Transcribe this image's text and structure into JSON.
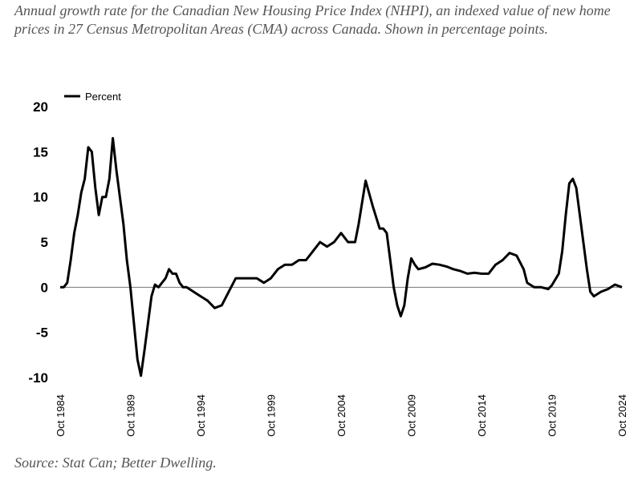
{
  "chart_data": {
    "type": "line",
    "title": "Annual growth rate for the Canadian New Housing Price Index (NHPI), an indexed value of new home prices in 27 Census Metropolitan Areas (CMA) across Canada. Shown in percentage points.",
    "source": "Source: Stat Can; Better Dwelling.",
    "x": [
      "1984-10",
      "1985-01",
      "1985-04",
      "1985-07",
      "1985-10",
      "1986-01",
      "1986-04",
      "1986-07",
      "1986-10",
      "1987-01",
      "1987-04",
      "1987-07",
      "1987-10",
      "1988-01",
      "1988-04",
      "1988-07",
      "1988-10",
      "1989-01",
      "1989-04",
      "1989-07",
      "1989-10",
      "1990-01",
      "1990-04",
      "1990-07",
      "1990-10",
      "1991-01",
      "1991-04",
      "1991-07",
      "1991-10",
      "1992-01",
      "1992-04",
      "1992-07",
      "1992-10",
      "1993-01",
      "1993-04",
      "1993-07",
      "1993-10",
      "1994-04",
      "1994-10",
      "1995-04",
      "1995-10",
      "1996-04",
      "1996-10",
      "1997-04",
      "1997-10",
      "1998-04",
      "1998-10",
      "1999-04",
      "1999-10",
      "2000-04",
      "2000-10",
      "2001-04",
      "2001-10",
      "2002-04",
      "2002-10",
      "2003-04",
      "2003-10",
      "2004-04",
      "2004-10",
      "2005-04",
      "2005-10",
      "2006-01",
      "2006-07",
      "2007-01",
      "2007-07",
      "2007-10",
      "2008-01",
      "2008-04",
      "2008-07",
      "2008-10",
      "2009-01",
      "2009-04",
      "2009-07",
      "2009-10",
      "2010-01",
      "2010-04",
      "2010-10",
      "2011-04",
      "2011-10",
      "2012-04",
      "2012-10",
      "2013-04",
      "2013-10",
      "2014-04",
      "2014-10",
      "2015-04",
      "2015-10",
      "2016-04",
      "2016-10",
      "2017-04",
      "2017-10",
      "2018-01",
      "2018-07",
      "2019-01",
      "2019-07",
      "2019-10",
      "2020-04",
      "2020-07",
      "2020-10",
      "2021-01",
      "2021-04",
      "2021-07",
      "2021-10",
      "2022-01",
      "2022-04",
      "2022-07",
      "2022-10",
      "2023-04",
      "2023-10",
      "2024-04",
      "2024-10"
    ],
    "series": [
      {
        "name": "Percent",
        "color": "#000000",
        "values": [
          0,
          0,
          0.5,
          3,
          6,
          8,
          10.5,
          12,
          15.5,
          15,
          11,
          8,
          10,
          10,
          12,
          16.5,
          13,
          10,
          7,
          3,
          0,
          -4,
          -8,
          -9.8,
          -7,
          -4,
          -1,
          0.3,
          0,
          0.5,
          1,
          2,
          1.5,
          1.5,
          0.5,
          0,
          0,
          -0.5,
          -1,
          -1.5,
          -2.3,
          -2,
          -0.5,
          1,
          1,
          1,
          1,
          0.5,
          1,
          2,
          2.5,
          2.5,
          3,
          3,
          4,
          5,
          4.5,
          5,
          6,
          5,
          5,
          7,
          11.8,
          9,
          6.5,
          6.5,
          6,
          3,
          0,
          -2,
          -3.2,
          -2,
          1,
          3.2,
          2.5,
          2,
          2.2,
          2.6,
          2.5,
          2.3,
          2,
          1.8,
          1.5,
          1.6,
          1.5,
          1.5,
          2.5,
          3,
          3.8,
          3.5,
          2,
          0.5,
          0,
          0,
          -0.2,
          0.2,
          1.5,
          4,
          8,
          11.5,
          12,
          11,
          8,
          5,
          2,
          -0.5,
          -1,
          -0.5,
          -0.2,
          0.3,
          0
        ]
      }
    ],
    "xlim": [
      "1984-10",
      "2024-10"
    ],
    "xticks": [
      {
        "value": "1984-10",
        "label": "Oct 1984"
      },
      {
        "value": "1989-10",
        "label": "Oct 1989"
      },
      {
        "value": "1994-10",
        "label": "Oct 1994"
      },
      {
        "value": "1999-10",
        "label": "Oct 1999"
      },
      {
        "value": "2004-10",
        "label": "Oct 2004"
      },
      {
        "value": "2009-10",
        "label": "Oct 2009"
      },
      {
        "value": "2014-10",
        "label": "Oct 2014"
      },
      {
        "value": "2019-10",
        "label": "Oct 2019"
      },
      {
        "value": "2024-10",
        "label": "Oct 2024"
      }
    ],
    "ylim": [
      -10,
      20
    ],
    "yticks": [
      -10,
      -5,
      0,
      5,
      10,
      15,
      20
    ],
    "zero_line": true,
    "grid": false
  }
}
